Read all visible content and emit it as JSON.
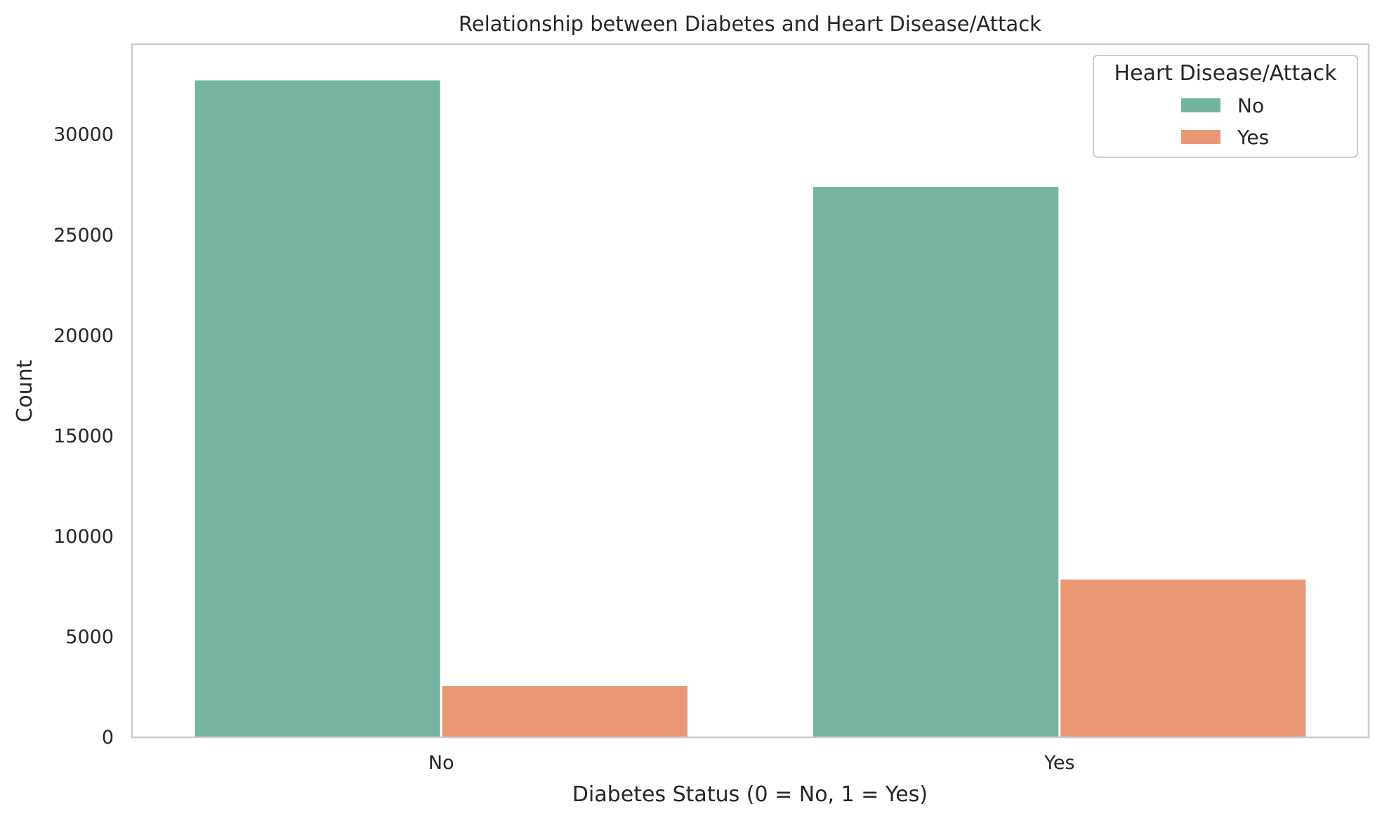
{
  "chart_data": {
    "type": "bar",
    "title": "Relationship between Diabetes and Heart Disease/Attack",
    "xlabel": "Diabetes Status (0 = No, 1 = Yes)",
    "ylabel": "Count",
    "categories": [
      "No",
      "Yes"
    ],
    "series": [
      {
        "name": "No",
        "values": [
          32700,
          27400
        ],
        "color": "#75b4a0"
      },
      {
        "name": "Yes",
        "values": [
          2550,
          7850
        ],
        "color": "#e99774"
      }
    ],
    "ylim": [
      0,
      34500
    ],
    "yticks": [
      0,
      5000,
      10000,
      15000,
      20000,
      25000,
      30000
    ],
    "grid": false,
    "legend": {
      "title": "Heart Disease/Attack",
      "placement": "top-right"
    },
    "colors": {
      "axes_edge": "#cccccc",
      "text": "#262626"
    }
  }
}
